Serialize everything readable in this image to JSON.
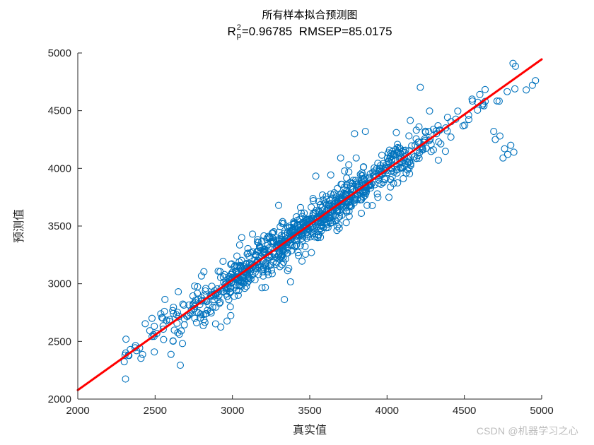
{
  "chart_data": {
    "type": "scatter",
    "title": "所有样本拟合预测图",
    "subtitle": "R_p^2=0.96785  RMSEP=85.0175",
    "stats": {
      "r_base": "R",
      "sup": "2",
      "sub": "p",
      "r2_value": "0.96785",
      "rmsep_value": "85.0175",
      "rest": "=0.96785  RMSEP=85.0175"
    },
    "xlabel": "真实值",
    "ylabel": "预测值",
    "xlim": [
      2000,
      5000
    ],
    "ylim": [
      2000,
      5000
    ],
    "xticks": [
      2000,
      2500,
      3000,
      3500,
      4000,
      4500,
      5000
    ],
    "yticks": [
      2000,
      2500,
      3000,
      3500,
      4000,
      4500,
      5000
    ],
    "grid": false,
    "legend": "none",
    "fit_line": {
      "x": [
        2000,
        5000
      ],
      "y": [
        2078,
        4945
      ],
      "slope": 0.9557,
      "intercept": 166.6,
      "color": "#ff0000",
      "width": 3
    },
    "scatter_style": {
      "color": "#0072BD",
      "radius": 4.5,
      "stroke_width": 1.1,
      "fill": "none"
    },
    "points": {
      "generated": true,
      "generator": {
        "seed": 7,
        "n": 950,
        "x_center": 3480,
        "x_sd": 470,
        "x_min": 2300,
        "x_max": 5000,
        "slope": 0.9557,
        "intercept": 166.6,
        "noise_sd": 80,
        "noise_sd_wide": 150,
        "mix_frac": 0.15
      },
      "outliers": [
        [
          4690,
          4320
        ],
        [
          4730,
          4280
        ],
        [
          4760,
          4170
        ],
        [
          4780,
          4120
        ],
        [
          4800,
          4200
        ],
        [
          4820,
          4140
        ],
        [
          4750,
          4090
        ],
        [
          4700,
          4250
        ],
        [
          3790,
          4300
        ],
        [
          3860,
          4320
        ],
        [
          4060,
          4310
        ],
        [
          4270,
          4320
        ],
        [
          4300,
          4160
        ],
        [
          3700,
          4090
        ],
        [
          2480,
          2700
        ],
        [
          2560,
          2760
        ],
        [
          2650,
          2930
        ],
        [
          3060,
          3400
        ],
        [
          3130,
          3430
        ],
        [
          4940,
          4720
        ],
        [
          4960,
          4760
        ],
        [
          4900,
          4680
        ],
        [
          2310,
          2400
        ],
        [
          2340,
          2430
        ],
        [
          2380,
          2420
        ],
        [
          4550,
          4600
        ],
        [
          4600,
          4640
        ],
        [
          4620,
          4560
        ]
      ]
    },
    "axis_color": "#262626",
    "tick_label_color": "#262626"
  },
  "watermark": {
    "text": "CSDN @机器学习之心"
  }
}
